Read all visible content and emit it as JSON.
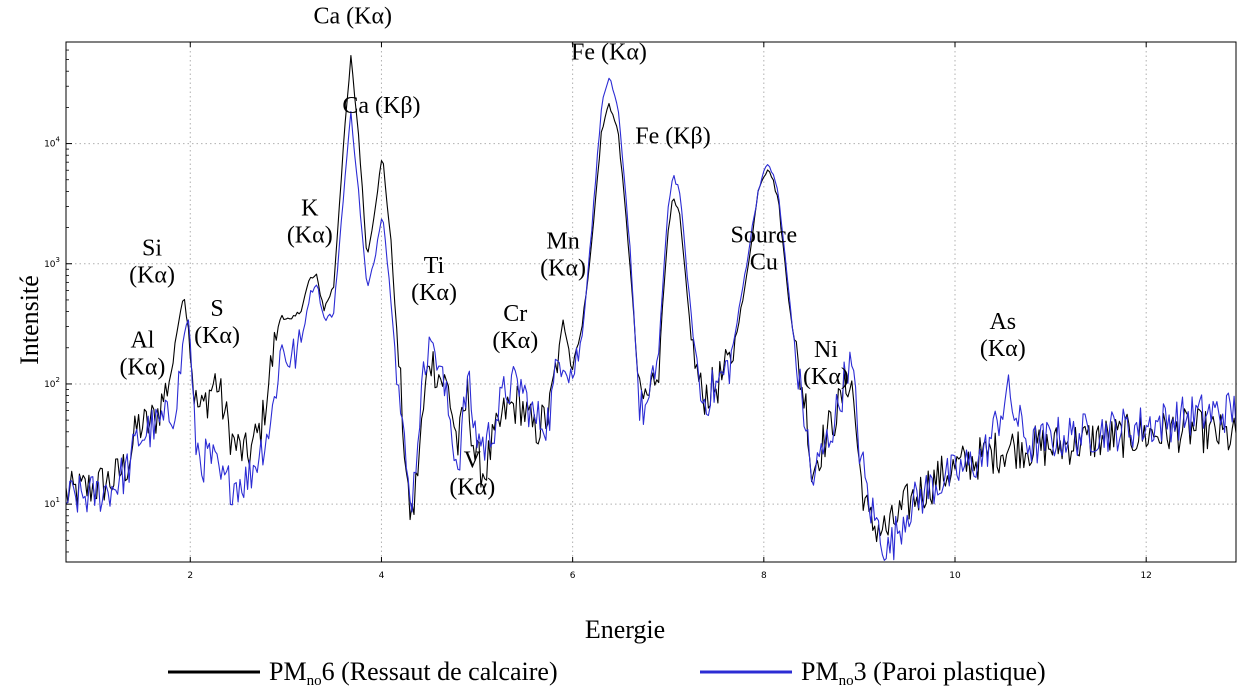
{
  "chart_data": {
    "type": "line",
    "xlabel": "Energie",
    "ylabel": "Intensité",
    "xlim": [
      0.7,
      12.95
    ],
    "ylim": [
      3.3,
      70000
    ],
    "y_scale": "log",
    "grid": true,
    "legend_position": "bottom",
    "x_ticks": [
      "2",
      "4",
      "6",
      "8",
      "10",
      "12"
    ],
    "y_ticks": [
      {
        "base": "10",
        "exp": "1"
      },
      {
        "base": "10",
        "exp": "2"
      },
      {
        "base": "10",
        "exp": "3"
      },
      {
        "base": "10",
        "exp": "4"
      }
    ],
    "legend": [
      {
        "prefix": "PM",
        "sub": "no",
        "suffix": "6 (Ressaut de calcaire)",
        "color": "#000000"
      },
      {
        "prefix": "PM",
        "sub": "no",
        "suffix": "3 (Paroi plastique)",
        "color": "#2c2cd4"
      }
    ],
    "series": [
      {
        "color": "#000000",
        "points": [
          [
            0.7,
            12
          ],
          [
            1.0,
            14
          ],
          [
            1.2,
            16
          ],
          [
            1.35,
            22
          ],
          [
            1.45,
            45
          ],
          [
            1.55,
            45
          ],
          [
            1.65,
            55
          ],
          [
            1.75,
            90
          ],
          [
            1.82,
            160
          ],
          [
            1.88,
            350
          ],
          [
            1.93,
            560
          ],
          [
            1.98,
            300
          ],
          [
            2.05,
            70
          ],
          [
            2.12,
            60
          ],
          [
            2.2,
            85
          ],
          [
            2.27,
            110
          ],
          [
            2.33,
            70
          ],
          [
            2.45,
            32
          ],
          [
            2.6,
            25
          ],
          [
            2.75,
            45
          ],
          [
            2.85,
            150
          ],
          [
            2.95,
            380
          ],
          [
            3.05,
            330
          ],
          [
            3.15,
            400
          ],
          [
            3.25,
            750
          ],
          [
            3.32,
            780
          ],
          [
            3.4,
            420
          ],
          [
            3.5,
            650
          ],
          [
            3.6,
            9000
          ],
          [
            3.68,
            52000
          ],
          [
            3.76,
            12000
          ],
          [
            3.85,
            1100
          ],
          [
            3.92,
            2500
          ],
          [
            4.01,
            8000
          ],
          [
            4.1,
            1500
          ],
          [
            4.2,
            90
          ],
          [
            4.28,
            10
          ],
          [
            4.33,
            8
          ],
          [
            4.4,
            30
          ],
          [
            4.5,
            170
          ],
          [
            4.6,
            120
          ],
          [
            4.7,
            90
          ],
          [
            4.8,
            30
          ],
          [
            4.9,
            80
          ],
          [
            4.98,
            25
          ],
          [
            5.08,
            18
          ],
          [
            5.15,
            30
          ],
          [
            5.3,
            60
          ],
          [
            5.45,
            70
          ],
          [
            5.6,
            40
          ],
          [
            5.75,
            55
          ],
          [
            5.85,
            180
          ],
          [
            5.9,
            330
          ],
          [
            6.0,
            150
          ],
          [
            6.1,
            300
          ],
          [
            6.2,
            1500
          ],
          [
            6.3,
            12000
          ],
          [
            6.38,
            22000
          ],
          [
            6.48,
            12000
          ],
          [
            6.6,
            1000
          ],
          [
            6.7,
            75
          ],
          [
            6.8,
            80
          ],
          [
            6.9,
            150
          ],
          [
            7.0,
            2000
          ],
          [
            7.05,
            3500
          ],
          [
            7.12,
            2500
          ],
          [
            7.25,
            200
          ],
          [
            7.35,
            80
          ],
          [
            7.5,
            95
          ],
          [
            7.65,
            150
          ],
          [
            7.8,
            600
          ],
          [
            7.95,
            4500
          ],
          [
            8.05,
            6500
          ],
          [
            8.15,
            3500
          ],
          [
            8.25,
            600
          ],
          [
            8.35,
            150
          ],
          [
            8.45,
            60
          ],
          [
            8.5,
            18
          ],
          [
            8.6,
            30
          ],
          [
            8.7,
            45
          ],
          [
            8.8,
            70
          ],
          [
            8.88,
            110
          ],
          [
            8.93,
            90
          ],
          [
            9.0,
            20
          ],
          [
            9.1,
            7
          ],
          [
            9.3,
            6
          ],
          [
            9.5,
            10
          ],
          [
            9.75,
            15
          ],
          [
            10.0,
            20
          ],
          [
            10.3,
            25
          ],
          [
            10.6,
            30
          ],
          [
            11.0,
            30
          ],
          [
            11.5,
            35
          ],
          [
            12.0,
            38
          ],
          [
            12.5,
            42
          ],
          [
            12.95,
            35
          ]
        ]
      },
      {
        "color": "#2c2cd4",
        "points": [
          [
            0.7,
            11
          ],
          [
            1.0,
            12
          ],
          [
            1.2,
            14
          ],
          [
            1.35,
            20
          ],
          [
            1.45,
            35
          ],
          [
            1.55,
            40
          ],
          [
            1.65,
            45
          ],
          [
            1.75,
            50
          ],
          [
            1.82,
            60
          ],
          [
            1.88,
            100
          ],
          [
            1.93,
            250
          ],
          [
            1.98,
            350
          ],
          [
            2.05,
            35
          ],
          [
            2.12,
            22
          ],
          [
            2.2,
            25
          ],
          [
            2.27,
            20
          ],
          [
            2.33,
            15
          ],
          [
            2.45,
            15
          ],
          [
            2.6,
            16
          ],
          [
            2.75,
            30
          ],
          [
            2.85,
            50
          ],
          [
            2.95,
            200
          ],
          [
            3.05,
            160
          ],
          [
            3.15,
            200
          ],
          [
            3.25,
            550
          ],
          [
            3.32,
            700
          ],
          [
            3.4,
            350
          ],
          [
            3.5,
            380
          ],
          [
            3.6,
            3500
          ],
          [
            3.68,
            18000
          ],
          [
            3.76,
            4000
          ],
          [
            3.85,
            600
          ],
          [
            3.92,
            1000
          ],
          [
            4.01,
            2800
          ],
          [
            4.1,
            500
          ],
          [
            4.2,
            60
          ],
          [
            4.28,
            14
          ],
          [
            4.33,
            12
          ],
          [
            4.4,
            60
          ],
          [
            4.5,
            260
          ],
          [
            4.6,
            150
          ],
          [
            4.7,
            60
          ],
          [
            4.8,
            20
          ],
          [
            4.9,
            110
          ],
          [
            4.98,
            40
          ],
          [
            5.08,
            30
          ],
          [
            5.15,
            40
          ],
          [
            5.3,
            90
          ],
          [
            5.45,
            100
          ],
          [
            5.6,
            50
          ],
          [
            5.75,
            50
          ],
          [
            5.85,
            160
          ],
          [
            5.9,
            180
          ],
          [
            6.0,
            120
          ],
          [
            6.1,
            250
          ],
          [
            6.2,
            2000
          ],
          [
            6.3,
            20000
          ],
          [
            6.38,
            36000
          ],
          [
            6.48,
            18000
          ],
          [
            6.6,
            1400
          ],
          [
            6.7,
            60
          ],
          [
            6.8,
            65
          ],
          [
            6.9,
            200
          ],
          [
            7.0,
            3000
          ],
          [
            7.05,
            5600
          ],
          [
            7.12,
            4000
          ],
          [
            7.25,
            300
          ],
          [
            7.35,
            70
          ],
          [
            7.5,
            95
          ],
          [
            7.65,
            150
          ],
          [
            7.8,
            800
          ],
          [
            7.95,
            4500
          ],
          [
            8.05,
            7000
          ],
          [
            8.15,
            4000
          ],
          [
            8.25,
            700
          ],
          [
            8.35,
            130
          ],
          [
            8.45,
            40
          ],
          [
            8.5,
            15
          ],
          [
            8.6,
            25
          ],
          [
            8.7,
            40
          ],
          [
            8.8,
            75
          ],
          [
            8.88,
            150
          ],
          [
            8.93,
            120
          ],
          [
            9.0,
            30
          ],
          [
            9.1,
            10
          ],
          [
            9.3,
            4
          ],
          [
            9.5,
            9
          ],
          [
            9.75,
            14
          ],
          [
            10.0,
            18
          ],
          [
            10.3,
            25
          ],
          [
            10.45,
            50
          ],
          [
            10.55,
            85
          ],
          [
            10.65,
            50
          ],
          [
            10.8,
            30
          ],
          [
            11.0,
            35
          ],
          [
            11.5,
            40
          ],
          [
            12.0,
            45
          ],
          [
            12.5,
            55
          ],
          [
            12.95,
            60
          ]
        ]
      }
    ],
    "annotations": [
      {
        "lines": [
          "Ca (Kα)"
        ],
        "x": 3.7,
        "y": 100000
      },
      {
        "lines": [
          "Ca (Kβ)"
        ],
        "x": 4.0,
        "y": 18000
      },
      {
        "lines": [
          "Fe (Kα)"
        ],
        "x": 6.38,
        "y": 50000
      },
      {
        "lines": [
          "Fe (Kβ)"
        ],
        "x": 7.05,
        "y": 10000
      },
      {
        "lines": [
          "K",
          "(Kα)"
        ],
        "x": 3.25,
        "y": 1500
      },
      {
        "lines": [
          "Si",
          "(Kα)"
        ],
        "x": 1.6,
        "y": 700
      },
      {
        "lines": [
          "Al",
          "(Kα)"
        ],
        "x": 1.5,
        "y": 120
      },
      {
        "lines": [
          "S",
          "(Kα)"
        ],
        "x": 2.28,
        "y": 220
      },
      {
        "lines": [
          "Ti",
          "(Kα)"
        ],
        "x": 4.55,
        "y": 500
      },
      {
        "lines": [
          "Cr",
          "(Kα)"
        ],
        "x": 5.4,
        "y": 200
      },
      {
        "lines": [
          "Mn",
          "(Kα)"
        ],
        "x": 5.9,
        "y": 800
      },
      {
        "lines": [
          "V",
          "(Kα)"
        ],
        "x": 4.95,
        "y": 12
      },
      {
        "lines": [
          "Source",
          "Cu"
        ],
        "x": 8.0,
        "y": 900
      },
      {
        "lines": [
          "Ni",
          "(Kα)"
        ],
        "x": 8.65,
        "y": 100
      },
      {
        "lines": [
          "As",
          "(Kα)"
        ],
        "x": 10.5,
        "y": 170
      }
    ]
  }
}
